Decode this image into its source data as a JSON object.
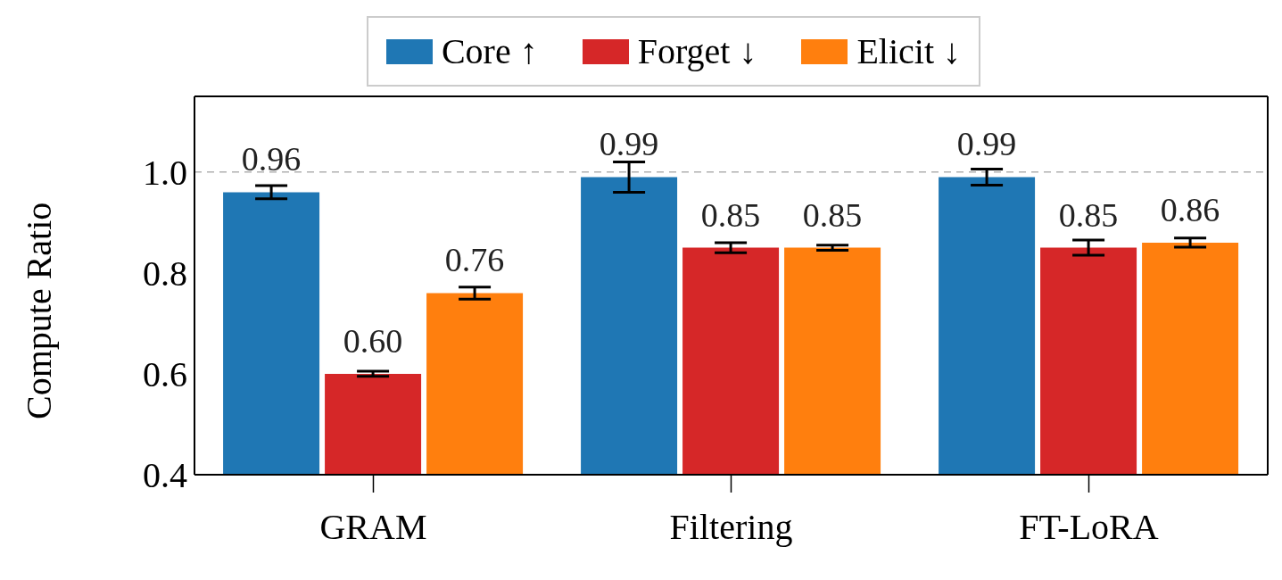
{
  "chart_data": {
    "type": "bar",
    "ylabel": "Compute Ratio",
    "categories": [
      "GRAM",
      "Filtering",
      "FT-LoRA"
    ],
    "series": [
      {
        "name": "Core ↑",
        "color": "#1f77b4",
        "values": [
          0.96,
          0.99,
          0.99
        ],
        "value_labels": [
          "0.96",
          "0.99",
          "0.99"
        ],
        "errors": [
          0.013,
          0.03,
          0.016
        ]
      },
      {
        "name": "Forget ↓",
        "color": "#d62728",
        "values": [
          0.6,
          0.85,
          0.85
        ],
        "value_labels": [
          "0.60",
          "0.85",
          "0.85"
        ],
        "errors": [
          0.005,
          0.01,
          0.015
        ]
      },
      {
        "name": "Elicit ↓",
        "color": "#ff7f0e",
        "values": [
          0.76,
          0.85,
          0.86
        ],
        "value_labels": [
          "0.76",
          "0.85",
          "0.86"
        ],
        "errors": [
          0.012,
          0.005,
          0.009
        ]
      }
    ],
    "ylim": [
      0.4,
      1.15
    ],
    "yticks": [
      0.4,
      0.6,
      0.8,
      {
        "value": 1.0,
        "label": "1.0"
      }
    ],
    "ref_lines": [
      {
        "axis": "y",
        "value": 1.0,
        "color": "#b0b0b0",
        "line_style": "dashed"
      }
    ],
    "legend": "top",
    "grid": false
  }
}
